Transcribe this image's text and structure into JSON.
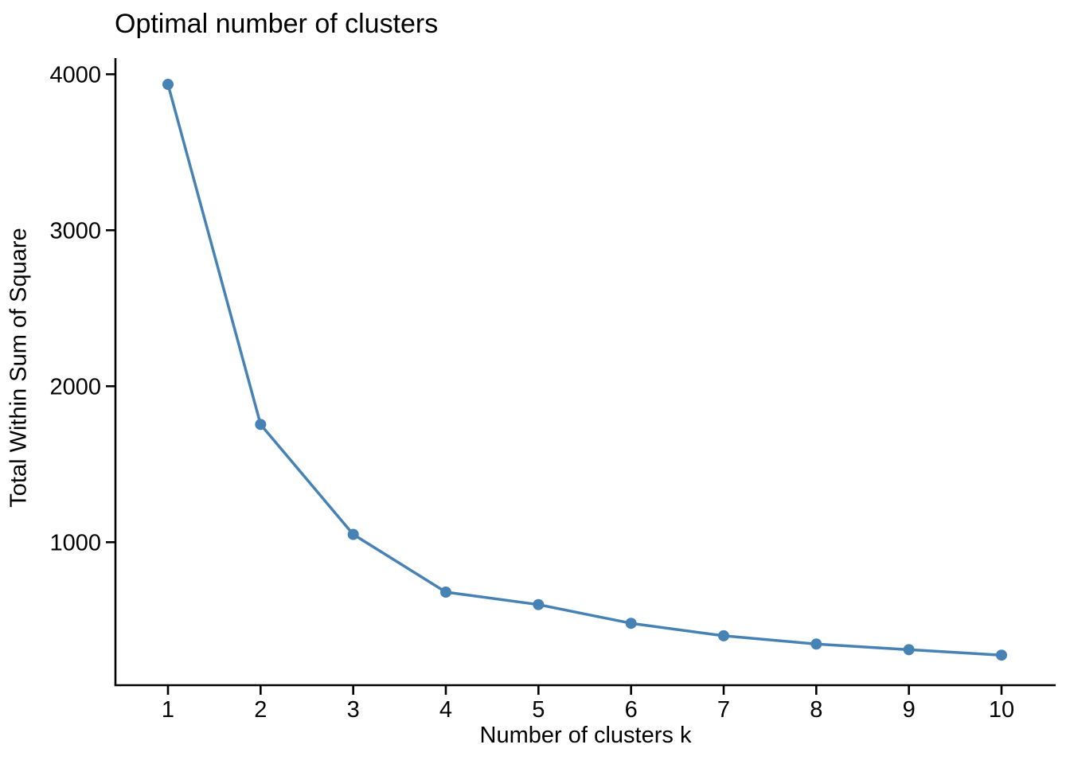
{
  "chart_data": {
    "type": "line",
    "title": "Optimal number of clusters",
    "xlabel": "Number of clusters k",
    "ylabel": "Total Within Sum of Square",
    "x": [
      1,
      2,
      3,
      4,
      5,
      6,
      7,
      8,
      9,
      10
    ],
    "series": [
      {
        "name": "total-within-sum-of-square",
        "values": [
          3935,
          1755,
          1050,
          680,
          600,
          480,
          400,
          347,
          311,
          276
        ]
      }
    ],
    "xticks": [
      "1",
      "2",
      "3",
      "4",
      "5",
      "6",
      "7",
      "8",
      "9",
      "10"
    ],
    "yticks": [
      "1000",
      "2000",
      "3000",
      "4000"
    ],
    "ytick_values": [
      1000,
      2000,
      3000,
      4000
    ],
    "xlim": [
      0.43,
      10.58
    ],
    "ylim": [
      84,
      4095
    ],
    "grid": false,
    "legend_position": "none",
    "line_color": "#4682B4",
    "marker": "filled-circle",
    "axis_color": "#000000",
    "background_color": "#FFFFFF"
  }
}
